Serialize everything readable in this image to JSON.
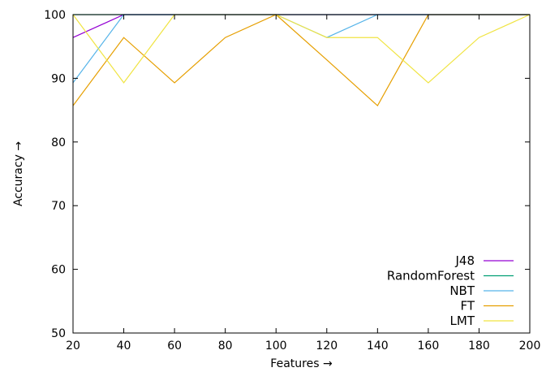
{
  "chart_data": {
    "type": "line",
    "title": "",
    "xlabel": "Features →",
    "ylabel": "Accuracy →",
    "x": [
      20,
      40,
      60,
      80,
      100,
      120,
      140,
      160,
      180,
      200
    ],
    "xlim": [
      20,
      200
    ],
    "ylim": [
      50,
      100
    ],
    "xticks": [
      20,
      40,
      60,
      80,
      100,
      120,
      140,
      160,
      180,
      200
    ],
    "yticks": [
      50,
      60,
      70,
      80,
      90,
      100
    ],
    "grid": false,
    "legend_position": "bottom-right",
    "series": [
      {
        "name": "J48",
        "color": "#9400d3",
        "values": [
          96.4,
          100,
          100,
          100,
          100,
          100,
          100,
          100,
          100,
          100
        ]
      },
      {
        "name": "RandomForest",
        "color": "#009e73",
        "values": [
          100,
          100,
          100,
          100,
          100,
          100,
          100,
          100,
          100,
          100
        ]
      },
      {
        "name": "NBT",
        "color": "#56b4e9",
        "values": [
          89.3,
          100,
          100,
          100,
          100,
          96.4,
          100,
          100,
          100,
          100
        ]
      },
      {
        "name": "FT",
        "color": "#e69f00",
        "values": [
          85.7,
          96.4,
          89.3,
          96.4,
          100,
          92.9,
          85.7,
          100,
          100,
          100
        ]
      },
      {
        "name": "LMT",
        "color": "#f0e442",
        "values": [
          100,
          89.3,
          100,
          100,
          100,
          96.4,
          96.4,
          89.3,
          96.4,
          100
        ]
      }
    ]
  }
}
